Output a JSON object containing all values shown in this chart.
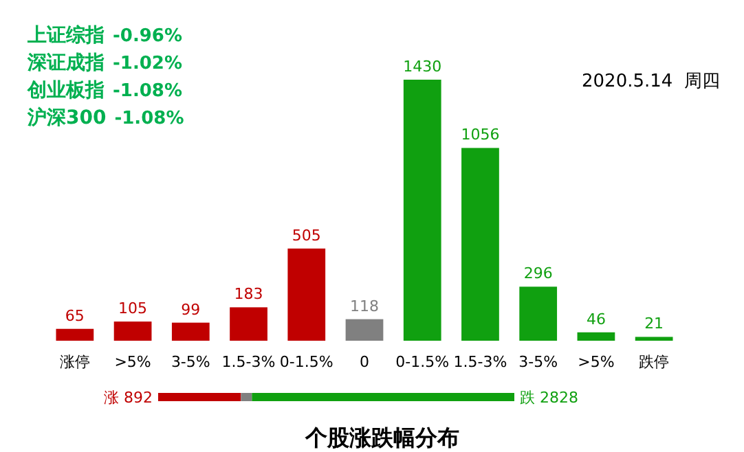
{
  "chart_data": [
    {
      "type": "bar",
      "title": "个股涨跌幅分布",
      "categories": [
        "涨停",
        ">5%",
        "3-5%",
        "1.5-3%",
        "0-1.5%",
        "0",
        "0-1.5%",
        "1.5-3%",
        "3-5%",
        ">5%",
        "跌停"
      ],
      "values": [
        65,
        105,
        99,
        183,
        505,
        118,
        1430,
        1056,
        296,
        46,
        21
      ],
      "colors": [
        "#c00000",
        "#c00000",
        "#c00000",
        "#c00000",
        "#c00000",
        "#808080",
        "#10a010",
        "#10a010",
        "#10a010",
        "#10a010",
        "#10a010"
      ],
      "data_labels": true,
      "annotations": [
        "上证综指 -0.96%",
        "深证成指 -1.02%",
        "创业板指 -1.08%",
        "沪深300 -1.08%",
        "2020.5.14  周四"
      ]
    },
    {
      "type": "bar",
      "orientation": "horizontal",
      "stacked": true,
      "categories": [
        null
      ],
      "series": [
        {
          "color": "#c00000",
          "values": [
            892
          ],
          "value_labels": [
            "涨 892"
          ]
        },
        {
          "color": "#808080",
          "values": [
            118
          ],
          "value_labels": [
            null
          ]
        },
        {
          "color": "#10a010",
          "values": [
            2828
          ],
          "value_labels": [
            "跌 2828"
          ]
        }
      ]
    }
  ]
}
